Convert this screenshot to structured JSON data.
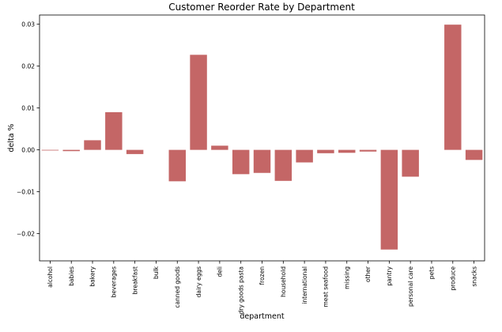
{
  "chart_data": {
    "type": "bar",
    "title": "Customer Reorder Rate by Department",
    "xlabel": "department",
    "ylabel": "delta %",
    "ylim": [
      -0.0265,
      0.0322
    ],
    "yticks": [
      -0.02,
      -0.01,
      0.0,
      0.01,
      0.02,
      0.03
    ],
    "ytick_labels": [
      "−0.02",
      "−0.01",
      "0.00",
      "0.01",
      "0.02",
      "0.03"
    ],
    "bar_color": "#c46666",
    "grid": false,
    "categories": [
      "alcohol",
      "babies",
      "bakery",
      "beverages",
      "breakfast",
      "bulk",
      "canned goods",
      "dairy eggs",
      "deli",
      "dry goods pasta",
      "frozen",
      "household",
      "international",
      "meat seafood",
      "missing",
      "other",
      "pantry",
      "personal care",
      "pets",
      "produce",
      "snacks"
    ],
    "values": [
      -0.0001,
      -0.0003,
      0.0023,
      0.009,
      -0.001,
      0.0,
      -0.0075,
      0.0227,
      0.001,
      -0.0058,
      -0.0055,
      -0.0074,
      -0.003,
      -0.0008,
      -0.0007,
      -0.0004,
      -0.0238,
      -0.0064,
      0.0,
      0.0299,
      -0.0024
    ]
  }
}
